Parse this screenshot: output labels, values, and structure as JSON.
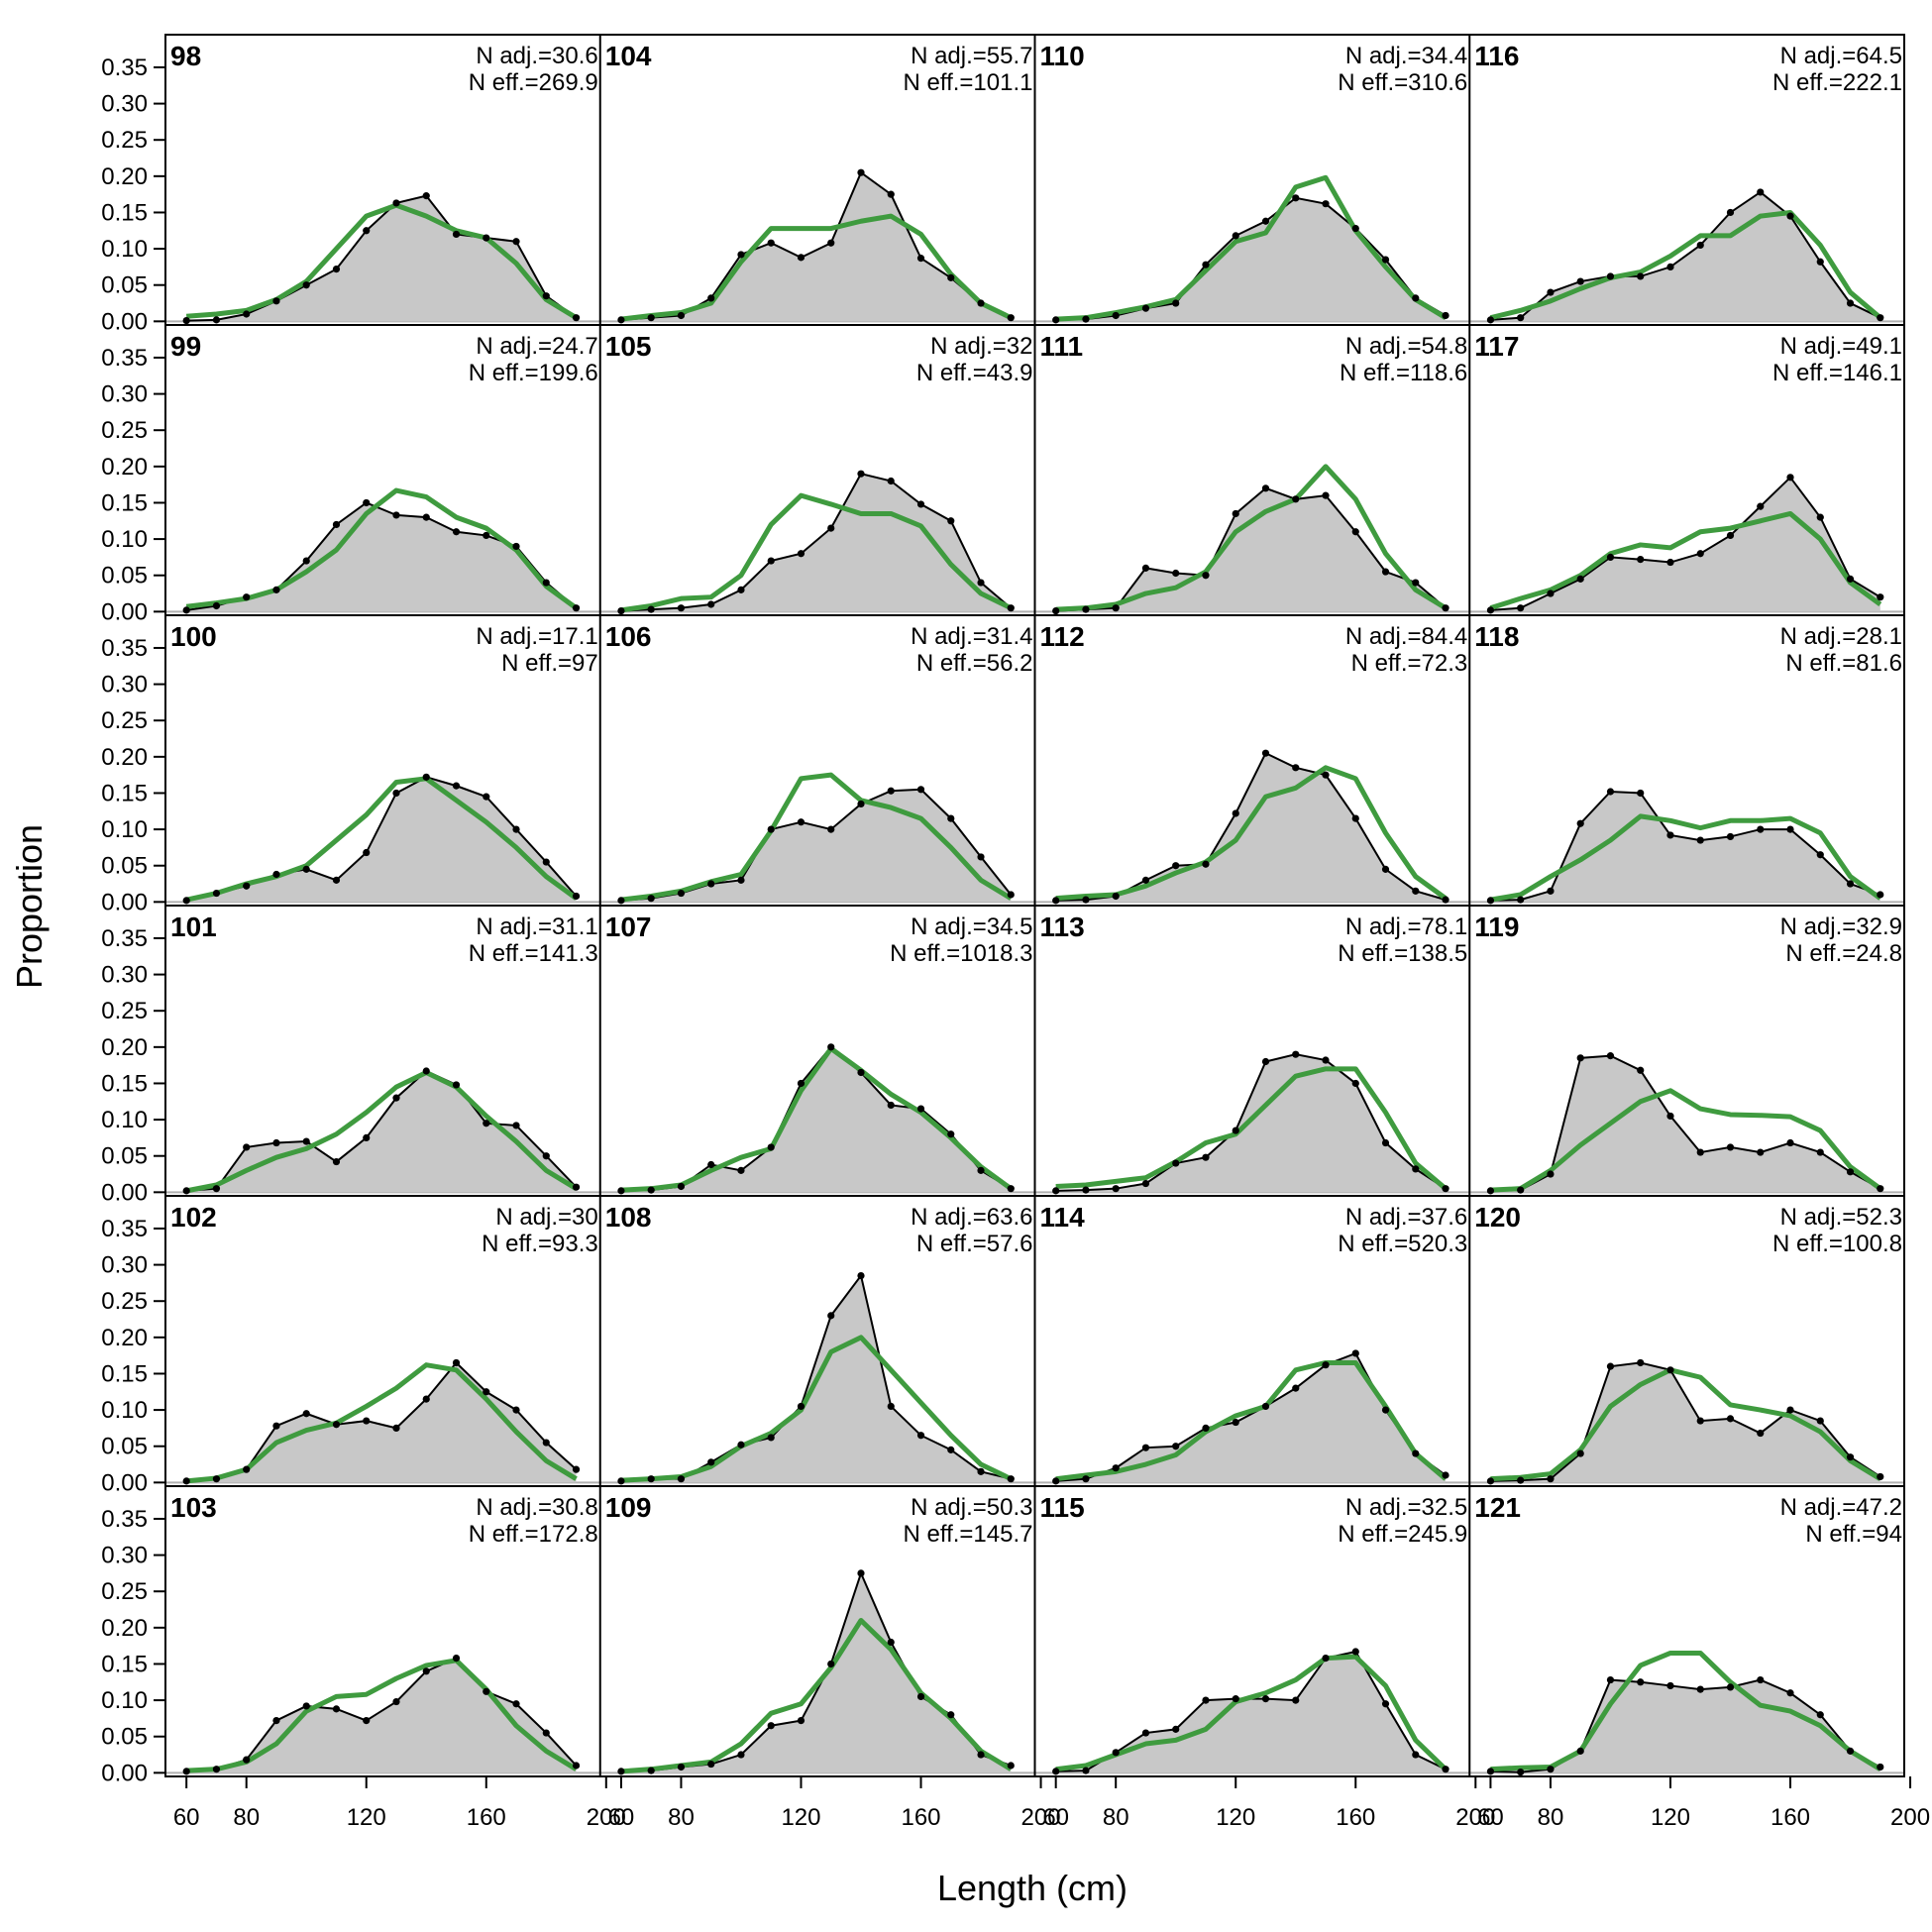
{
  "chart_data": {
    "type": "area",
    "xlabel": "Length (cm)",
    "ylabel": "Proportion",
    "xlim": [
      53,
      198
    ],
    "ylim": [
      -0.005,
      0.395
    ],
    "x_ticks": [
      60,
      80,
      120,
      160,
      200
    ],
    "y_ticks": [
      "0.00",
      "0.05",
      "0.10",
      "0.15",
      "0.20",
      "0.25",
      "0.30",
      "0.35"
    ],
    "grid": false,
    "layout": "6 rows x 4 columns, filled by column",
    "colors": {
      "observed_fill": "#c8c8c8",
      "observed_line": "#000000",
      "expected_line": "#3f9b3f",
      "zero_line": "#b0b0b0"
    },
    "x": [
      60,
      70,
      80,
      90,
      100,
      110,
      120,
      130,
      140,
      150,
      160,
      170,
      180,
      190
    ],
    "panels": [
      {
        "label": "98",
        "n_adj": "N adj.=30.6",
        "n_eff": "N eff.=269.9",
        "observed": [
          0.001,
          0.002,
          0.01,
          0.028,
          0.05,
          0.072,
          0.125,
          0.163,
          0.173,
          0.12,
          0.115,
          0.11,
          0.035,
          0.005
        ],
        "expected": [
          0.007,
          0.01,
          0.015,
          0.03,
          0.055,
          0.1,
          0.145,
          0.16,
          0.145,
          0.125,
          0.115,
          0.08,
          0.03,
          0.005
        ]
      },
      {
        "label": "99",
        "n_adj": "N adj.=24.7",
        "n_eff": "N eff.=199.6",
        "observed": [
          0.002,
          0.008,
          0.02,
          0.03,
          0.07,
          0.12,
          0.15,
          0.133,
          0.13,
          0.11,
          0.105,
          0.09,
          0.04,
          0.005
        ],
        "expected": [
          0.007,
          0.012,
          0.018,
          0.03,
          0.055,
          0.085,
          0.135,
          0.167,
          0.158,
          0.13,
          0.115,
          0.085,
          0.035,
          0.005
        ]
      },
      {
        "label": "100",
        "n_adj": "N adj.=17.1",
        "n_eff": "N eff.=97",
        "observed": [
          0.002,
          0.012,
          0.022,
          0.038,
          0.045,
          0.03,
          0.068,
          0.15,
          0.172,
          0.16,
          0.145,
          0.1,
          0.055,
          0.008
        ],
        "expected": [
          0.003,
          0.012,
          0.025,
          0.035,
          0.05,
          0.085,
          0.12,
          0.165,
          0.17,
          0.14,
          0.11,
          0.075,
          0.035,
          0.005
        ]
      },
      {
        "label": "101",
        "n_adj": "N adj.=31.1",
        "n_eff": "N eff.=141.3",
        "observed": [
          0.002,
          0.005,
          0.062,
          0.068,
          0.07,
          0.042,
          0.075,
          0.13,
          0.167,
          0.148,
          0.095,
          0.092,
          0.05,
          0.007
        ],
        "expected": [
          0.002,
          0.01,
          0.03,
          0.048,
          0.06,
          0.08,
          0.11,
          0.145,
          0.165,
          0.145,
          0.105,
          0.07,
          0.03,
          0.005
        ]
      },
      {
        "label": "102",
        "n_adj": "N adj.=30",
        "n_eff": "N eff.=93.3",
        "observed": [
          0.002,
          0.005,
          0.018,
          0.078,
          0.095,
          0.08,
          0.085,
          0.075,
          0.115,
          0.165,
          0.125,
          0.1,
          0.055,
          0.018
        ],
        "expected": [
          0.002,
          0.006,
          0.018,
          0.055,
          0.072,
          0.082,
          0.105,
          0.13,
          0.162,
          0.155,
          0.115,
          0.07,
          0.03,
          0.005
        ]
      },
      {
        "label": "103",
        "n_adj": "N adj.=30.8",
        "n_eff": "N eff.=172.8",
        "observed": [
          0.002,
          0.005,
          0.018,
          0.072,
          0.092,
          0.088,
          0.072,
          0.098,
          0.14,
          0.158,
          0.112,
          0.095,
          0.055,
          0.01
        ],
        "expected": [
          0.003,
          0.005,
          0.015,
          0.04,
          0.085,
          0.105,
          0.108,
          0.13,
          0.148,
          0.155,
          0.115,
          0.065,
          0.03,
          0.005
        ]
      },
      {
        "label": "104",
        "n_adj": "N adj.=55.7",
        "n_eff": "N eff.=101.1",
        "observed": [
          0.002,
          0.005,
          0.008,
          0.032,
          0.092,
          0.108,
          0.088,
          0.108,
          0.205,
          0.175,
          0.087,
          0.06,
          0.025,
          0.005
        ],
        "expected": [
          0.003,
          0.008,
          0.012,
          0.025,
          0.082,
          0.128,
          0.128,
          0.128,
          0.138,
          0.145,
          0.12,
          0.065,
          0.025,
          0.005
        ]
      },
      {
        "label": "105",
        "n_adj": "N adj.=32",
        "n_eff": "N eff.=43.9",
        "observed": [
          0.001,
          0.003,
          0.005,
          0.01,
          0.03,
          0.07,
          0.08,
          0.115,
          0.19,
          0.18,
          0.148,
          0.125,
          0.04,
          0.005
        ],
        "expected": [
          0.002,
          0.008,
          0.018,
          0.02,
          0.05,
          0.12,
          0.16,
          0.148,
          0.135,
          0.135,
          0.118,
          0.065,
          0.025,
          0.005
        ]
      },
      {
        "label": "106",
        "n_adj": "N adj.=31.4",
        "n_eff": "N eff.=56.2",
        "observed": [
          0.002,
          0.005,
          0.012,
          0.025,
          0.03,
          0.1,
          0.11,
          0.1,
          0.135,
          0.153,
          0.155,
          0.115,
          0.062,
          0.01
        ],
        "expected": [
          0.003,
          0.008,
          0.015,
          0.028,
          0.038,
          0.098,
          0.17,
          0.175,
          0.14,
          0.13,
          0.115,
          0.075,
          0.03,
          0.005
        ]
      },
      {
        "label": "107",
        "n_adj": "N adj.=34.5",
        "n_eff": "N eff.=1018.3",
        "observed": [
          0.002,
          0.003,
          0.008,
          0.038,
          0.03,
          0.062,
          0.15,
          0.2,
          0.165,
          0.12,
          0.115,
          0.08,
          0.03,
          0.005
        ],
        "expected": [
          0.003,
          0.005,
          0.01,
          0.03,
          0.048,
          0.06,
          0.14,
          0.198,
          0.168,
          0.135,
          0.11,
          0.075,
          0.035,
          0.005
        ]
      },
      {
        "label": "108",
        "n_adj": "N adj.=63.6",
        "n_eff": "N eff.=57.6",
        "observed": [
          0.002,
          0.005,
          0.005,
          0.028,
          0.052,
          0.062,
          0.105,
          0.23,
          0.285,
          0.105,
          0.065,
          0.045,
          0.015,
          0.005
        ],
        "expected": [
          0.003,
          0.005,
          0.008,
          0.022,
          0.05,
          0.068,
          0.1,
          0.18,
          0.2,
          0.155,
          0.11,
          0.065,
          0.025,
          0.005
        ]
      },
      {
        "label": "109",
        "n_adj": "N adj.=50.3",
        "n_eff": "N eff.=145.7",
        "observed": [
          0.002,
          0.003,
          0.008,
          0.012,
          0.025,
          0.065,
          0.072,
          0.15,
          0.275,
          0.18,
          0.105,
          0.08,
          0.025,
          0.01
        ],
        "expected": [
          0.002,
          0.005,
          0.01,
          0.015,
          0.04,
          0.082,
          0.095,
          0.145,
          0.21,
          0.17,
          0.11,
          0.075,
          0.03,
          0.005
        ]
      },
      {
        "label": "110",
        "n_adj": "N adj.=34.4",
        "n_eff": "N eff.=310.6",
        "observed": [
          0.002,
          0.003,
          0.008,
          0.018,
          0.025,
          0.078,
          0.118,
          0.138,
          0.17,
          0.162,
          0.128,
          0.085,
          0.032,
          0.008
        ],
        "expected": [
          0.003,
          0.005,
          0.012,
          0.02,
          0.03,
          0.07,
          0.11,
          0.122,
          0.185,
          0.198,
          0.125,
          0.075,
          0.03,
          0.005
        ]
      },
      {
        "label": "111",
        "n_adj": "N adj.=54.8",
        "n_eff": "N eff.=118.6",
        "observed": [
          0.001,
          0.003,
          0.005,
          0.06,
          0.053,
          0.05,
          0.135,
          0.17,
          0.155,
          0.16,
          0.11,
          0.055,
          0.04,
          0.005
        ],
        "expected": [
          0.003,
          0.005,
          0.01,
          0.025,
          0.033,
          0.055,
          0.11,
          0.138,
          0.155,
          0.2,
          0.155,
          0.08,
          0.03,
          0.005
        ]
      },
      {
        "label": "112",
        "n_adj": "N adj.=84.4",
        "n_eff": "N eff.=72.3",
        "observed": [
          0.002,
          0.003,
          0.008,
          0.03,
          0.05,
          0.052,
          0.122,
          0.205,
          0.185,
          0.175,
          0.115,
          0.045,
          0.015,
          0.003
        ],
        "expected": [
          0.005,
          0.008,
          0.01,
          0.022,
          0.04,
          0.055,
          0.085,
          0.145,
          0.157,
          0.185,
          0.17,
          0.095,
          0.035,
          0.005
        ]
      },
      {
        "label": "113",
        "n_adj": "N adj.=78.1",
        "n_eff": "N eff.=138.5",
        "observed": [
          0.002,
          0.003,
          0.005,
          0.012,
          0.04,
          0.048,
          0.085,
          0.18,
          0.19,
          0.182,
          0.15,
          0.068,
          0.032,
          0.005
        ],
        "expected": [
          0.008,
          0.01,
          0.015,
          0.02,
          0.042,
          0.068,
          0.08,
          0.12,
          0.16,
          0.17,
          0.17,
          0.11,
          0.04,
          0.005
        ]
      },
      {
        "label": "114",
        "n_adj": "N adj.=37.6",
        "n_eff": "N eff.=520.3",
        "observed": [
          0.002,
          0.005,
          0.02,
          0.048,
          0.05,
          0.075,
          0.083,
          0.105,
          0.13,
          0.162,
          0.178,
          0.1,
          0.04,
          0.01
        ],
        "expected": [
          0.005,
          0.01,
          0.015,
          0.025,
          0.038,
          0.07,
          0.092,
          0.105,
          0.155,
          0.165,
          0.165,
          0.105,
          0.04,
          0.005
        ]
      },
      {
        "label": "115",
        "n_adj": "N adj.=32.5",
        "n_eff": "N eff.=245.9",
        "observed": [
          0.002,
          0.003,
          0.028,
          0.055,
          0.06,
          0.1,
          0.102,
          0.102,
          0.1,
          0.158,
          0.167,
          0.095,
          0.025,
          0.005
        ],
        "expected": [
          0.005,
          0.01,
          0.025,
          0.04,
          0.045,
          0.06,
          0.098,
          0.11,
          0.128,
          0.158,
          0.16,
          0.12,
          0.045,
          0.005
        ]
      },
      {
        "label": "116",
        "n_adj": "N adj.=64.5",
        "n_eff": "N eff.=222.1",
        "observed": [
          0.002,
          0.005,
          0.04,
          0.055,
          0.062,
          0.062,
          0.075,
          0.105,
          0.15,
          0.178,
          0.145,
          0.082,
          0.025,
          0.005
        ],
        "expected": [
          0.005,
          0.015,
          0.028,
          0.045,
          0.06,
          0.068,
          0.09,
          0.118,
          0.118,
          0.145,
          0.15,
          0.105,
          0.04,
          0.005
        ]
      },
      {
        "label": "117",
        "n_adj": "N adj.=49.1",
        "n_eff": "N eff.=146.1",
        "observed": [
          0.002,
          0.005,
          0.025,
          0.045,
          0.075,
          0.072,
          0.068,
          0.08,
          0.105,
          0.145,
          0.185,
          0.13,
          0.045,
          0.02
        ],
        "expected": [
          0.005,
          0.018,
          0.03,
          0.05,
          0.08,
          0.092,
          0.088,
          0.11,
          0.115,
          0.125,
          0.135,
          0.1,
          0.04,
          0.01
        ]
      },
      {
        "label": "118",
        "n_adj": "N adj.=28.1",
        "n_eff": "N eff.=81.6",
        "observed": [
          0.002,
          0.003,
          0.015,
          0.108,
          0.152,
          0.15,
          0.092,
          0.085,
          0.09,
          0.1,
          0.1,
          0.065,
          0.025,
          0.01
        ],
        "expected": [
          0.003,
          0.01,
          0.035,
          0.058,
          0.085,
          0.118,
          0.112,
          0.102,
          0.112,
          0.112,
          0.115,
          0.095,
          0.035,
          0.005
        ]
      },
      {
        "label": "119",
        "n_adj": "N adj.=32.9",
        "n_eff": "N eff.=24.8",
        "observed": [
          0.002,
          0.003,
          0.025,
          0.185,
          0.188,
          0.168,
          0.105,
          0.055,
          0.062,
          0.055,
          0.068,
          0.055,
          0.028,
          0.005
        ],
        "expected": [
          0.003,
          0.005,
          0.03,
          0.065,
          0.095,
          0.125,
          0.14,
          0.115,
          0.107,
          0.106,
          0.104,
          0.085,
          0.035,
          0.005
        ]
      },
      {
        "label": "120",
        "n_adj": "N adj.=52.3",
        "n_eff": "N eff.=100.8",
        "observed": [
          0.002,
          0.003,
          0.005,
          0.04,
          0.16,
          0.165,
          0.155,
          0.085,
          0.088,
          0.068,
          0.1,
          0.085,
          0.035,
          0.008
        ],
        "expected": [
          0.005,
          0.007,
          0.012,
          0.045,
          0.105,
          0.135,
          0.155,
          0.145,
          0.107,
          0.1,
          0.092,
          0.07,
          0.03,
          0.005
        ]
      },
      {
        "label": "121",
        "n_adj": "N adj.=47.2",
        "n_eff": "N eff.=94",
        "observed": [
          0.002,
          0.001,
          0.005,
          0.03,
          0.128,
          0.125,
          0.12,
          0.115,
          0.118,
          0.128,
          0.11,
          0.08,
          0.03,
          0.008
        ],
        "expected": [
          0.005,
          0.007,
          0.008,
          0.03,
          0.095,
          0.148,
          0.165,
          0.165,
          0.125,
          0.093,
          0.085,
          0.065,
          0.03,
          0.005
        ]
      }
    ]
  }
}
